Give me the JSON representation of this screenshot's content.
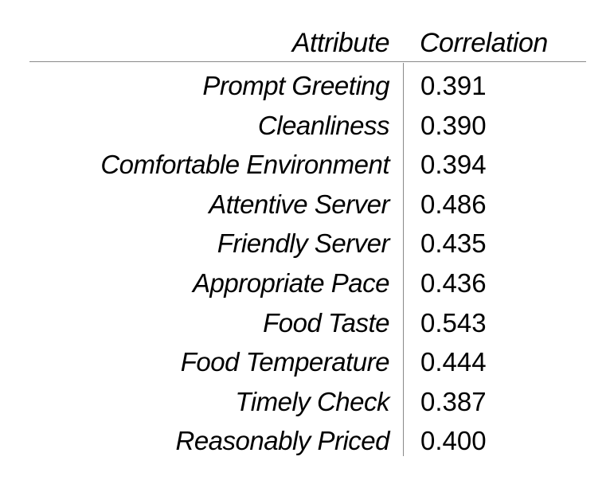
{
  "chart_data": {
    "type": "table",
    "columns": [
      "Attribute",
      "Correlation"
    ],
    "rows": [
      {
        "attribute": "Prompt Greeting",
        "value": "0.391"
      },
      {
        "attribute": "Cleanliness",
        "value": "0.390"
      },
      {
        "attribute": "Comfortable Environment",
        "value": "0.394"
      },
      {
        "attribute": "Attentive Server",
        "value": "0.486"
      },
      {
        "attribute": "Friendly Server",
        "value": "0.435"
      },
      {
        "attribute": "Appropriate Pace",
        "value": "0.436"
      },
      {
        "attribute": "Food Taste",
        "value": "0.543"
      },
      {
        "attribute": "Food Temperature",
        "value": "0.444"
      },
      {
        "attribute": "Timely Check",
        "value": "0.387"
      },
      {
        "attribute": "Reasonably Priced",
        "value": "0.400"
      }
    ]
  }
}
